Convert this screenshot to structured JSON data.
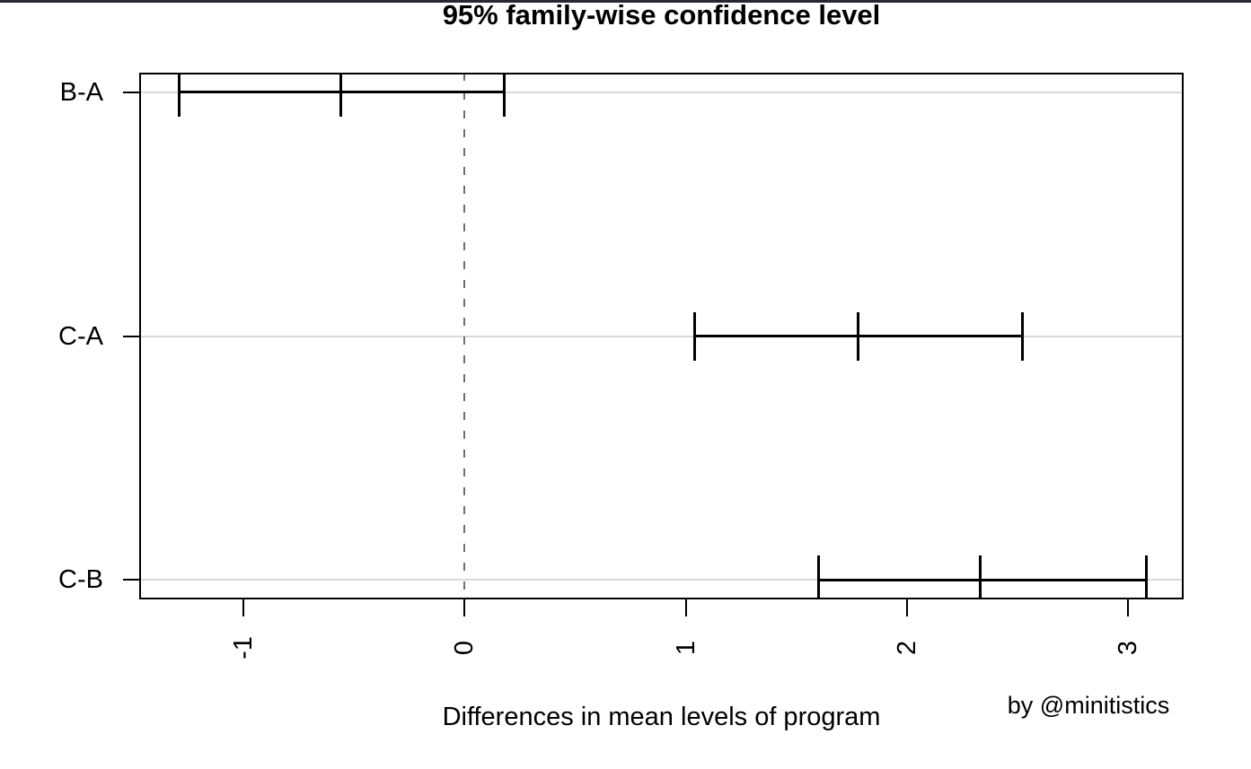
{
  "window": {
    "background": "#ffffff",
    "top_bar_color": "#272735"
  },
  "chart_data": {
    "type": "scatter",
    "subtype": "tukey-hsd-confidence-intervals",
    "title": "95% family-wise confidence level",
    "xlabel": "Differences in mean levels of program",
    "attribution": "by @minitistics",
    "comparisons": [
      {
        "label": "B-A",
        "lwr": -1.29,
        "diff": -0.56,
        "upr": 0.18,
        "y": 3
      },
      {
        "label": "C-A",
        "lwr": 1.04,
        "diff": 1.78,
        "upr": 2.52,
        "y": 2
      },
      {
        "label": "C-B",
        "lwr": 1.6,
        "diff": 2.33,
        "upr": 3.08,
        "y": 1
      }
    ],
    "x_ticks": [
      -1,
      0,
      1,
      2,
      3
    ],
    "x_tick_labels": [
      "-1",
      "0",
      "1",
      "2",
      "3"
    ],
    "xlim": [
      -1.47,
      3.25
    ],
    "ylim": [
      0.92,
      3.08
    ],
    "reference_line_x": 0,
    "grid": true,
    "legend": "none",
    "colors": {
      "interval": "#000000",
      "grid": "#d9d9d9",
      "reference_line": "#6e6e6e",
      "box": "#000000"
    }
  }
}
